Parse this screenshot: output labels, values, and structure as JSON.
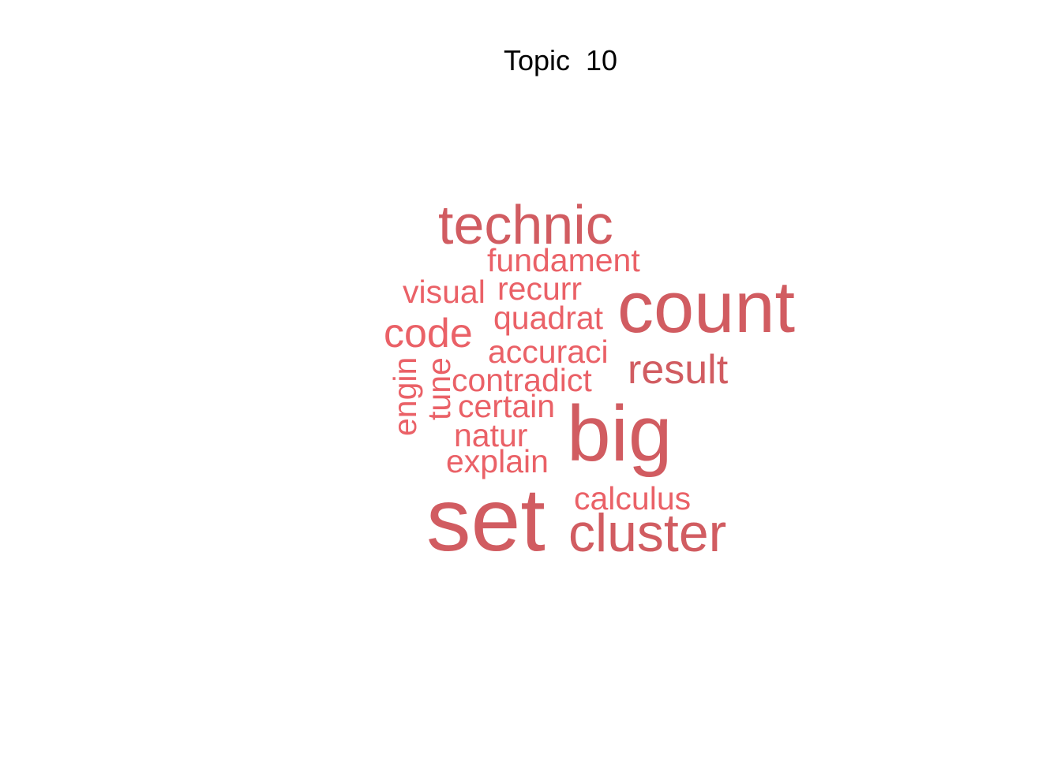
{
  "chart_data": {
    "type": "wordcloud",
    "title": "Topic  10",
    "words": [
      {
        "text": "set",
        "weight": 100,
        "color": "#d15c61"
      },
      {
        "text": "big",
        "weight": 88,
        "color": "#d15c61"
      },
      {
        "text": "count",
        "weight": 82,
        "color": "#d15c61"
      },
      {
        "text": "technic",
        "weight": 62,
        "color": "#d15c61"
      },
      {
        "text": "cluster",
        "weight": 60,
        "color": "#d15c61"
      },
      {
        "text": "result",
        "weight": 45,
        "color": "#d15c61"
      },
      {
        "text": "code",
        "weight": 45,
        "color": "#ea6167"
      },
      {
        "text": "fundament",
        "weight": 36,
        "color": "#ea6167"
      },
      {
        "text": "visual",
        "weight": 36,
        "color": "#ea6167"
      },
      {
        "text": "recurr",
        "weight": 36,
        "color": "#ea6167"
      },
      {
        "text": "quadrat",
        "weight": 36,
        "color": "#ea6167"
      },
      {
        "text": "accuraci",
        "weight": 36,
        "color": "#ea6167"
      },
      {
        "text": "contradict",
        "weight": 36,
        "color": "#ea6167"
      },
      {
        "text": "certain",
        "weight": 36,
        "color": "#ea6167"
      },
      {
        "text": "natur",
        "weight": 36,
        "color": "#ea6167"
      },
      {
        "text": "explain",
        "weight": 36,
        "color": "#ea6167"
      },
      {
        "text": "calculus",
        "weight": 36,
        "color": "#ea6167"
      },
      {
        "text": "engin",
        "weight": 36,
        "color": "#ea6167"
      },
      {
        "text": "tune",
        "weight": 36,
        "color": "#ea6167"
      }
    ]
  }
}
